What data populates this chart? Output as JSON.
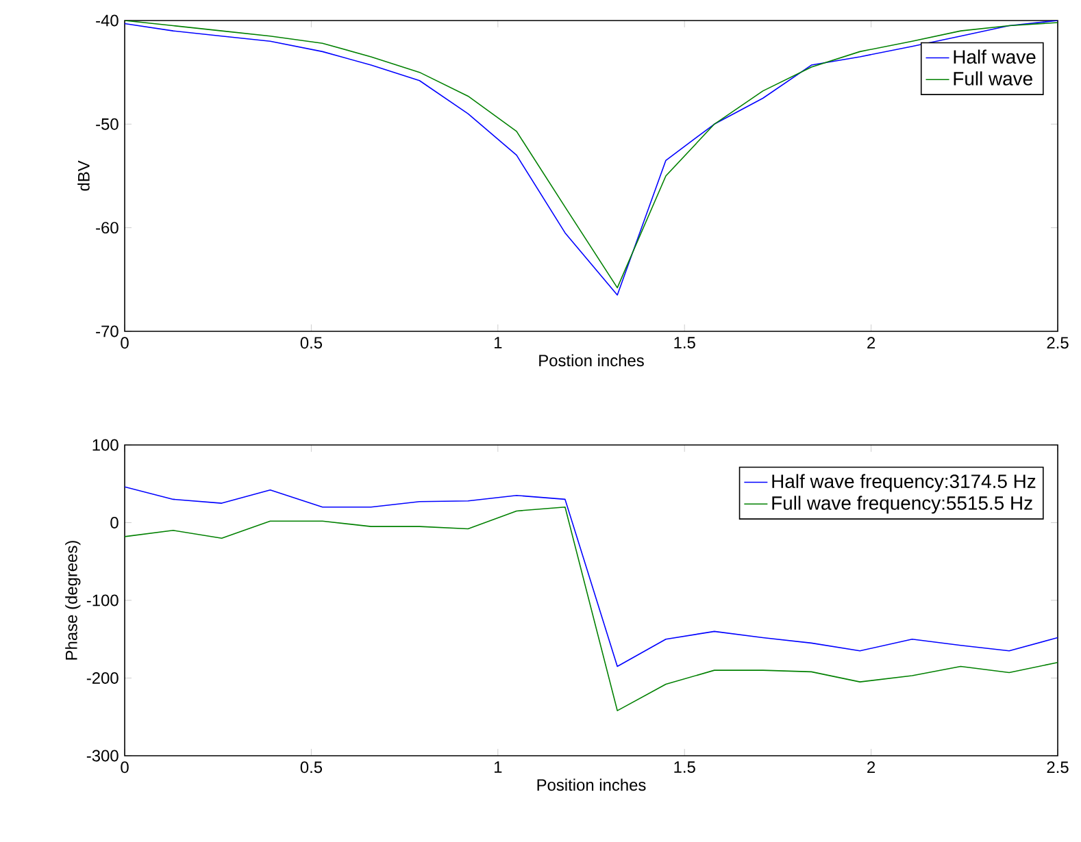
{
  "chart_data": [
    {
      "type": "line",
      "xlabel": "Postion inches",
      "ylabel": "dBV",
      "x": [
        0,
        0.13,
        0.26,
        0.39,
        0.53,
        0.66,
        0.79,
        0.92,
        1.05,
        1.18,
        1.32,
        1.45,
        1.58,
        1.71,
        1.84,
        1.97,
        2.11,
        2.24,
        2.37,
        2.5
      ],
      "xlim": [
        0,
        2.5
      ],
      "ylim": [
        -70,
        -40
      ],
      "xticks": [
        0,
        0.5,
        1,
        1.5,
        2,
        2.5
      ],
      "yticks": [
        -70,
        -60,
        -50,
        -40
      ],
      "legend": "top right",
      "series": [
        {
          "name": "Half wave",
          "color": "#0000ff",
          "values": [
            -40.3,
            -41,
            -41.5,
            -42,
            -43,
            -44.3,
            -45.8,
            -49,
            -53,
            -60.5,
            -66.5,
            -53.5,
            -50,
            -47.5,
            -44.3,
            -43.5,
            -42.5,
            -41.5,
            -40.5,
            -40
          ]
        },
        {
          "name": "Full wave",
          "color": "#008000",
          "values": [
            -40,
            -40.5,
            -41,
            -41.5,
            -42.2,
            -43.5,
            -45,
            -47.3,
            -50.7,
            -58,
            -65.8,
            -55,
            -50,
            -46.8,
            -44.5,
            -43,
            -42,
            -41,
            -40.5,
            -40.2
          ]
        }
      ]
    },
    {
      "type": "line",
      "xlabel": "Position inches",
      "ylabel": "Phase (degrees)",
      "x": [
        0,
        0.13,
        0.26,
        0.39,
        0.53,
        0.66,
        0.79,
        0.92,
        1.05,
        1.18,
        1.32,
        1.45,
        1.58,
        1.71,
        1.84,
        1.97,
        2.11,
        2.24,
        2.37,
        2.5
      ],
      "xlim": [
        0,
        2.5
      ],
      "ylim": [
        -300,
        100
      ],
      "xticks": [
        0,
        0.5,
        1,
        1.5,
        2,
        2.5
      ],
      "yticks": [
        -300,
        -200,
        -100,
        0,
        100
      ],
      "legend": "top right",
      "series": [
        {
          "name": "Half wave frequency:3174.5 Hz",
          "color": "#0000ff",
          "values": [
            46,
            30,
            25,
            42,
            20,
            20,
            27,
            28,
            35,
            30,
            -185,
            -150,
            -140,
            -148,
            -155,
            -165,
            -150,
            -158,
            -165,
            -148
          ]
        },
        {
          "name": "Full wave frequency:5515.5 Hz",
          "color": "#008000",
          "values": [
            -18,
            -10,
            -20,
            2,
            2,
            -5,
            -5,
            -8,
            15,
            20,
            -242,
            -208,
            -190,
            -190,
            -192,
            -205,
            -197,
            -185,
            -193,
            -180
          ]
        }
      ]
    }
  ]
}
